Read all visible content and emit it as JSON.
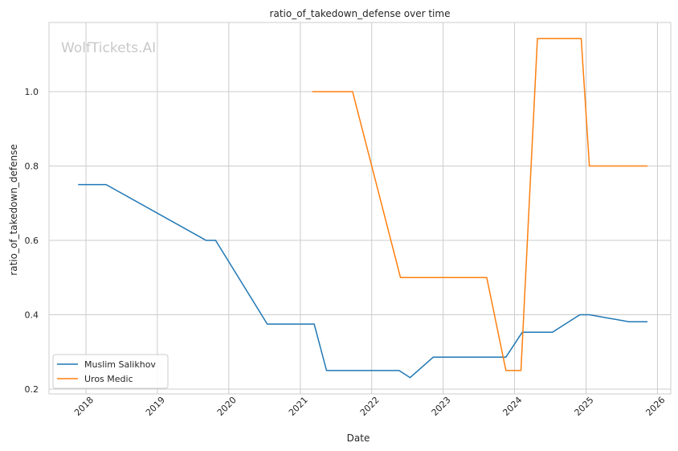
{
  "chart_data": {
    "type": "line",
    "title": "ratio_of_takedown_defense over time",
    "xlabel": "Date",
    "ylabel": "ratio_of_takedown_defense",
    "watermark": "WolfTickets.AI",
    "x_tick_labels": [
      "2018",
      "2019",
      "2020",
      "2021",
      "2022",
      "2023",
      "2024",
      "2025",
      "2026"
    ],
    "y_tick_labels": [
      "0.2",
      "0.4",
      "0.6",
      "0.8",
      "1.0"
    ],
    "y_ticks": [
      0.2,
      0.4,
      0.6,
      0.8,
      1.0
    ],
    "xlim": [
      "2017-06-26",
      "2026-03-10"
    ],
    "ylim": [
      0.187,
      1.186
    ],
    "grid": true,
    "legend_position": "lower-left",
    "series": [
      {
        "name": "Muslim Salikhov",
        "color": "#1f77b4",
        "points": [
          [
            "2017-11-25",
            0.75
          ],
          [
            "2018-04-14",
            0.75
          ],
          [
            "2019-09-07",
            0.6
          ],
          [
            "2019-10-26",
            0.6
          ],
          [
            "2020-07-16",
            0.375
          ],
          [
            "2021-03-13",
            0.375
          ],
          [
            "2021-05-15",
            0.25
          ],
          [
            "2022-05-21",
            0.25
          ],
          [
            "2022-07-16",
            0.231
          ],
          [
            "2022-11-12",
            0.286
          ],
          [
            "2023-11-18",
            0.286
          ],
          [
            "2024-02-10",
            0.353
          ],
          [
            "2024-07-13",
            0.353
          ],
          [
            "2024-11-30",
            0.4
          ],
          [
            "2025-01-18",
            0.4
          ],
          [
            "2025-08-09",
            0.381
          ],
          [
            "2025-11-08",
            0.381
          ]
        ]
      },
      {
        "name": "Uros Medic",
        "color": "#ff7f0e",
        "points": [
          [
            "2021-03-06",
            1.0
          ],
          [
            "2021-09-25",
            1.0
          ],
          [
            "2022-05-28",
            0.5
          ],
          [
            "2023-08-12",
            0.5
          ],
          [
            "2023-11-18",
            0.25
          ],
          [
            "2024-02-03",
            0.25
          ],
          [
            "2024-04-27",
            1.143
          ],
          [
            "2024-12-07",
            1.143
          ],
          [
            "2025-01-18",
            0.8
          ],
          [
            "2025-11-08",
            0.8
          ]
        ]
      }
    ]
  }
}
